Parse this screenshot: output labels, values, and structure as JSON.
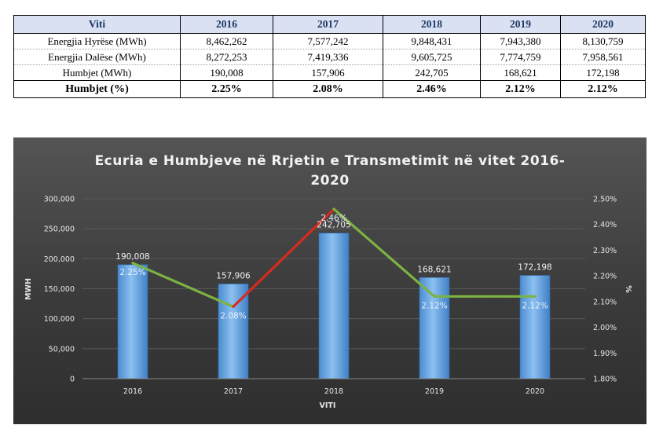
{
  "table": {
    "headers": [
      "Viti",
      "2016",
      "2017",
      "2018",
      "2019",
      "2020"
    ],
    "rows": [
      {
        "label": "Energjia Hyrëse (MWh)",
        "values": [
          "8,462,262",
          "7,577,242",
          "9,848,431",
          "7,943,380",
          "8,130,759"
        ]
      },
      {
        "label": "Energjia Dalëse (MWh)",
        "values": [
          "8,272,253",
          "7,419,336",
          "9,605,725",
          "7,774,759",
          "7,958,561"
        ]
      },
      {
        "label": "Humbjet (MWh)",
        "values": [
          "190,008",
          "157,906",
          "242,705",
          "168,621",
          "172,198"
        ]
      }
    ],
    "total_row": {
      "label": "Humbjet (%)",
      "values": [
        "2.25%",
        "2.08%",
        "2.46%",
        "2.12%",
        "2.12%"
      ]
    }
  },
  "chart_data": {
    "type": "bar",
    "title": "Ecuria e Humbjeve në Rrjetin e Transmetimit në vitet 2016-2020",
    "title_lines": [
      "Ecuria e Humbjeve në Rrjetin e Transmetimit në vitet 2016-",
      "2020"
    ],
    "categories": [
      "2016",
      "2017",
      "2018",
      "2019",
      "2020"
    ],
    "xlabel": "VITI",
    "ylabel": "MWH",
    "y2label": "%",
    "ylim": [
      0,
      300000
    ],
    "y2lim": [
      1.8,
      2.5
    ],
    "yticks": [
      "0",
      "50,000",
      "100,000",
      "150,000",
      "200,000",
      "250,000",
      "300,000"
    ],
    "y2ticks": [
      "1.80%",
      "1.90%",
      "2.00%",
      "2.10%",
      "2.20%",
      "2.30%",
      "2.40%",
      "2.50%"
    ],
    "series": [
      {
        "type": "bar",
        "axis": "left",
        "values": [
          190008,
          157906,
          242705,
          168621,
          172198
        ],
        "labels": [
          "190,008",
          "157,906",
          "242,705",
          "168,621",
          "172,198"
        ]
      },
      {
        "type": "line",
        "axis": "right",
        "values": [
          2.25,
          2.08,
          2.46,
          2.12,
          2.12
        ],
        "labels": [
          "2.25%",
          "2.08%",
          "2.46%",
          "2.12%",
          "2.12%"
        ]
      }
    ],
    "colors": {
      "bar": "#5b9bd5",
      "line": "#7cb342",
      "line_increase": "#d62b1e"
    }
  }
}
